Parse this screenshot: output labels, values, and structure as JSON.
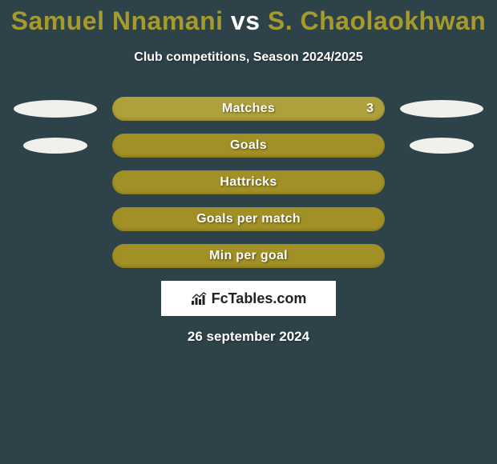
{
  "title": {
    "player1": "Samuel Nnamani",
    "vs": "vs",
    "player2": "S. Chaolaokhwan",
    "player1_color": "#a59a2e",
    "player2_color": "#a59a2e",
    "fontsize": 32
  },
  "subtitle": "Club competitions, Season 2024/2025",
  "background_color": "#2e424a",
  "ellipse_color": "#f0f0ec",
  "rows": [
    {
      "label": "Matches",
      "left_value": "",
      "right_value": "3",
      "bar_color": "#aea03a",
      "left_ellipse_w": 104,
      "left_ellipse_h": 22,
      "right_ellipse_w": 104,
      "right_ellipse_h": 22
    },
    {
      "label": "Goals",
      "left_value": "",
      "right_value": "",
      "bar_color": "#a19026",
      "left_ellipse_w": 80,
      "left_ellipse_h": 20,
      "right_ellipse_w": 80,
      "right_ellipse_h": 20
    },
    {
      "label": "Hattricks",
      "left_value": "",
      "right_value": "",
      "bar_color": "#a19026",
      "left_ellipse_w": 0,
      "left_ellipse_h": 0,
      "right_ellipse_w": 0,
      "right_ellipse_h": 0
    },
    {
      "label": "Goals per match",
      "left_value": "",
      "right_value": "",
      "bar_color": "#a19026",
      "left_ellipse_w": 0,
      "left_ellipse_h": 0,
      "right_ellipse_w": 0,
      "right_ellipse_h": 0
    },
    {
      "label": "Min per goal",
      "left_value": "",
      "right_value": "",
      "bar_color": "#a19026",
      "left_ellipse_w": 0,
      "left_ellipse_h": 0,
      "right_ellipse_w": 0,
      "right_ellipse_h": 0
    }
  ],
  "brand": "FcTables.com",
  "date": "26 september 2024"
}
